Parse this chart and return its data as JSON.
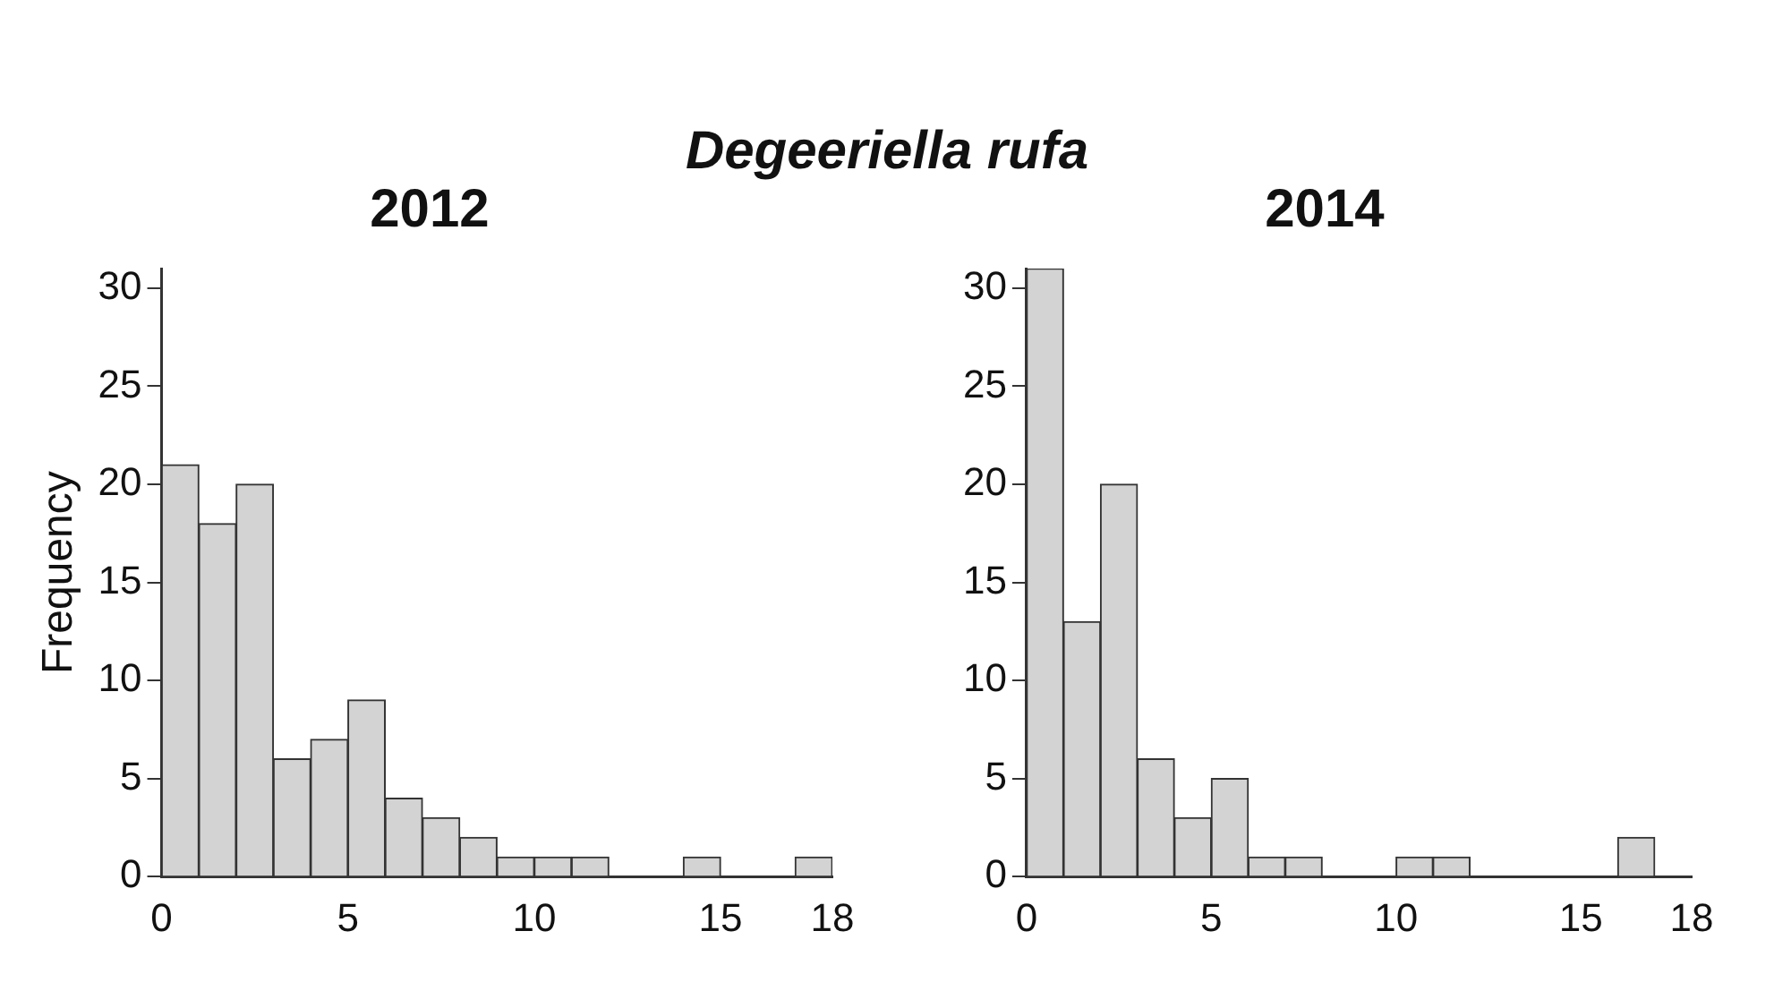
{
  "chart_data": [
    {
      "type": "histogram",
      "title": "Degeeriella rufa",
      "subtitle": "2012",
      "ylabel": "Frequency",
      "bins": [
        0,
        1,
        2,
        3,
        4,
        5,
        6,
        7,
        8,
        9,
        10,
        11,
        12,
        13,
        14,
        15,
        16,
        17,
        18
      ],
      "values": [
        21,
        18,
        20,
        6,
        7,
        9,
        4,
        3,
        2,
        1,
        1,
        1,
        0,
        0,
        1,
        0,
        0,
        1
      ],
      "color": "#d3d3d3",
      "xlim": [
        0,
        18
      ],
      "xticks": [
        0,
        5,
        10,
        15,
        18
      ],
      "ylim": [
        0,
        31
      ],
      "yticks": [
        0,
        5,
        10,
        15,
        20,
        25,
        30
      ]
    },
    {
      "type": "histogram",
      "subtitle": "2014",
      "bins": [
        0,
        1,
        2,
        3,
        4,
        5,
        6,
        7,
        8,
        9,
        10,
        11,
        12,
        13,
        14,
        15,
        16,
        17
      ],
      "values": [
        31,
        13,
        20,
        6,
        3,
        5,
        1,
        1,
        0,
        0,
        1,
        1,
        0,
        0,
        0,
        0,
        2
      ],
      "color": "#d3d3d3",
      "xlim": [
        0,
        18
      ],
      "xticks": [
        0,
        5,
        10,
        15,
        18
      ],
      "ylim": [
        0,
        31
      ],
      "yticks": [
        0,
        5,
        10,
        15,
        20,
        25,
        30
      ]
    }
  ]
}
